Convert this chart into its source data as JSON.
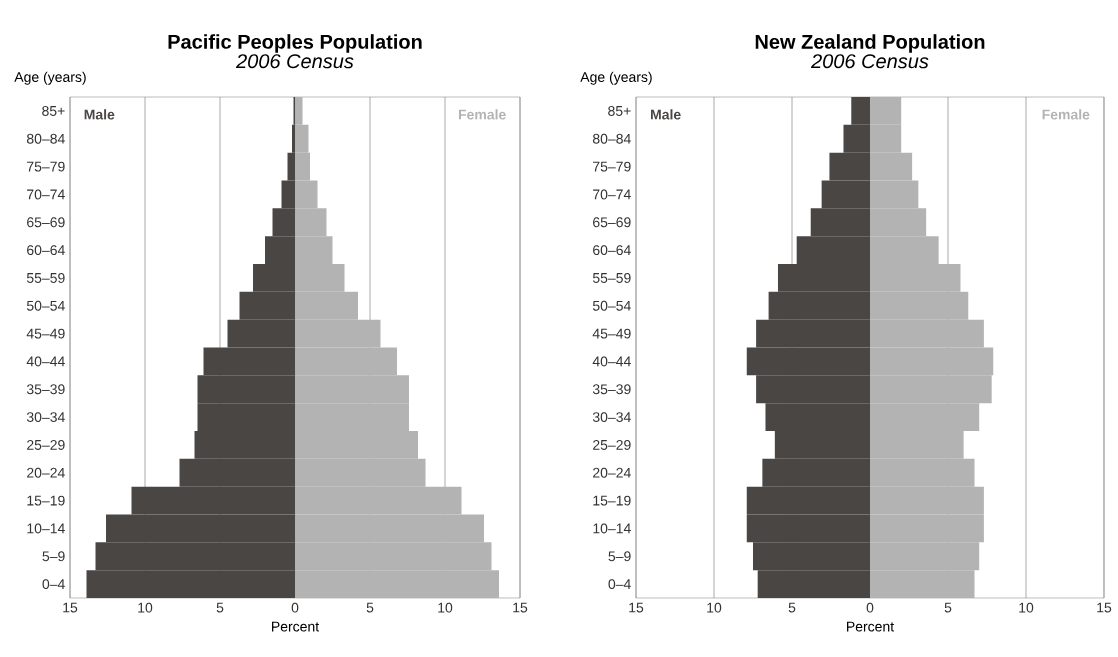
{
  "chart_data": [
    {
      "type": "bar",
      "orientation": "horizontal",
      "title": "Pacific Peoples Population",
      "subtitle": "2006 Census",
      "xlabel": "Percent",
      "ylabel": "Age (years)",
      "categories": [
        "85+",
        "80–84",
        "75–79",
        "70–74",
        "65–69",
        "60–64",
        "55–59",
        "50–54",
        "45–49",
        "40–44",
        "35–39",
        "30–34",
        "25–29",
        "20–24",
        "15–19",
        "10–14",
        "5–9",
        "0–4"
      ],
      "series": [
        {
          "name": "Male",
          "color": "#4a4644",
          "values": [
            -0.1,
            -0.2,
            -0.5,
            -0.9,
            -1.5,
            -2.0,
            -2.8,
            -3.7,
            -4.5,
            -6.1,
            -6.5,
            -6.5,
            -6.7,
            -7.7,
            -10.9,
            -12.6,
            -13.3,
            -13.9
          ]
        },
        {
          "name": "Female",
          "color": "#b3b3b3",
          "values": [
            0.5,
            0.9,
            1.0,
            1.5,
            2.1,
            2.5,
            3.3,
            4.2,
            5.7,
            6.8,
            7.6,
            7.6,
            8.2,
            8.7,
            11.1,
            12.6,
            13.1,
            13.6
          ]
        }
      ],
      "xlim": [
        -15,
        15
      ],
      "xticks": [
        {
          "value": -15,
          "label": "15"
        },
        {
          "value": -10,
          "label": "10"
        },
        {
          "value": -5,
          "label": "5"
        },
        0,
        5,
        10,
        15
      ],
      "grid": "x",
      "stacked": true
    },
    {
      "type": "bar",
      "orientation": "horizontal",
      "title": "New Zealand Population",
      "subtitle": "2006 Census",
      "xlabel": "Percent",
      "ylabel": "Age (years)",
      "categories": [
        "85+",
        "80–84",
        "75–79",
        "70–74",
        "65–69",
        "60–64",
        "55–59",
        "50–54",
        "45–49",
        "40–44",
        "35–39",
        "30–34",
        "25–29",
        "20–24",
        "15–19",
        "10–14",
        "5–9",
        "0–4"
      ],
      "series": [
        {
          "name": "Male",
          "color": "#4a4644",
          "values": [
            -1.2,
            -1.7,
            -2.6,
            -3.1,
            -3.8,
            -4.7,
            -5.9,
            -6.5,
            -7.3,
            -7.9,
            -7.3,
            -6.7,
            -6.1,
            -6.9,
            -7.9,
            -7.9,
            -7.5,
            -7.2
          ]
        },
        {
          "name": "Female",
          "color": "#b3b3b3",
          "values": [
            2.0,
            2.0,
            2.7,
            3.1,
            3.6,
            4.4,
            5.8,
            6.3,
            7.3,
            7.9,
            7.8,
            7.0,
            6.0,
            6.7,
            7.3,
            7.3,
            7.0,
            6.7
          ]
        }
      ],
      "xlim": [
        -15,
        15
      ],
      "xticks": [
        {
          "value": -15,
          "label": "15"
        },
        {
          "value": -10,
          "label": "10"
        },
        {
          "value": -5,
          "label": "5"
        },
        0,
        5,
        10,
        15
      ],
      "grid": "x",
      "stacked": true
    }
  ]
}
